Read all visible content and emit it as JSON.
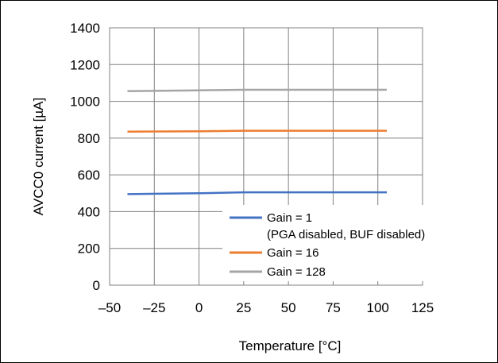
{
  "chart_data": {
    "type": "line",
    "title": "",
    "xlabel": "Temperature  [°C]",
    "ylabel": "AVCC0 current [µA]",
    "xlim": [
      -50,
      125
    ],
    "ylim": [
      0,
      1400
    ],
    "x_ticks": [
      -50,
      -25,
      0,
      25,
      50,
      75,
      100,
      125
    ],
    "x_tick_labels": [
      "–50",
      "–25",
      "0",
      "25",
      "50",
      "75",
      "100",
      "125"
    ],
    "y_ticks": [
      0,
      200,
      400,
      600,
      800,
      1000,
      1200,
      1400
    ],
    "y_tick_labels": [
      "0",
      "200",
      "400",
      "600",
      "800",
      "1000",
      "1200",
      "1400"
    ],
    "grid": true,
    "legend_position": "bottom-right",
    "series": [
      {
        "name": "Gain = 1",
        "name_line2": "(PGA disabled, BUF disabled)",
        "color": "#4472c4",
        "x": [
          -40,
          0,
          25,
          50,
          75,
          105
        ],
        "y": [
          495,
          500,
          505,
          505,
          505,
          505
        ]
      },
      {
        "name": "Gain = 16",
        "color": "#ed7d31",
        "x": [
          -40,
          0,
          25,
          50,
          75,
          105
        ],
        "y": [
          835,
          837,
          840,
          840,
          840,
          840
        ]
      },
      {
        "name": "Gain = 128",
        "color": "#a5a5a5",
        "x": [
          -40,
          0,
          25,
          50,
          75,
          105
        ],
        "y": [
          1055,
          1060,
          1063,
          1063,
          1063,
          1063
        ]
      }
    ]
  }
}
